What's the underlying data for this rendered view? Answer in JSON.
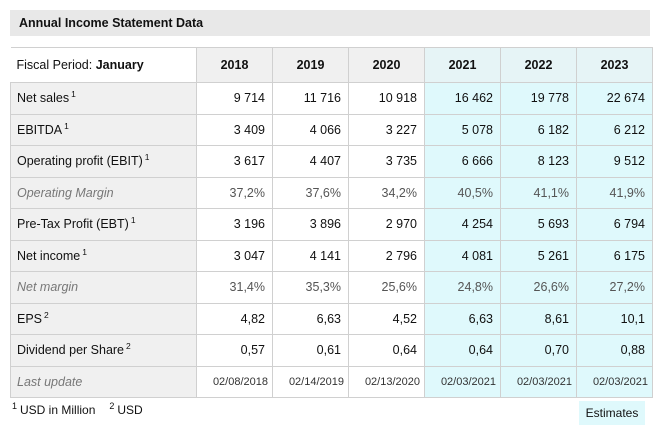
{
  "title": "Annual Income Statement Data",
  "fiscal_label": "Fiscal Period:",
  "fiscal_value": "January",
  "years": [
    "2018",
    "2019",
    "2020",
    "2021",
    "2022",
    "2023"
  ],
  "estimate_start_index": 3,
  "rows": [
    {
      "label": "Net sales",
      "sup": "1",
      "italic": false,
      "values": [
        "9 714",
        "11 716",
        "10 918",
        "16 462",
        "19 778",
        "22 674"
      ]
    },
    {
      "label": "EBITDA",
      "sup": "1",
      "italic": false,
      "values": [
        "3 409",
        "4 066",
        "3 227",
        "5 078",
        "6 182",
        "6 212"
      ]
    },
    {
      "label": "Operating profit (EBIT)",
      "sup": "1",
      "italic": false,
      "values": [
        "3 617",
        "4 407",
        "3 735",
        "6 666",
        "8 123",
        "9 512"
      ]
    },
    {
      "label": "Operating Margin",
      "sup": "",
      "italic": true,
      "values": [
        "37,2%",
        "37,6%",
        "34,2%",
        "40,5%",
        "41,1%",
        "41,9%"
      ]
    },
    {
      "label": "Pre-Tax Profit (EBT)",
      "sup": "1",
      "italic": false,
      "values": [
        "3 196",
        "3 896",
        "2 970",
        "4 254",
        "5 693",
        "6 794"
      ]
    },
    {
      "label": "Net income",
      "sup": "1",
      "italic": false,
      "values": [
        "3 047",
        "4 141",
        "2 796",
        "4 081",
        "5 261",
        "6 175"
      ]
    },
    {
      "label": "Net margin",
      "sup": "",
      "italic": true,
      "values": [
        "31,4%",
        "35,3%",
        "25,6%",
        "24,8%",
        "26,6%",
        "27,2%"
      ]
    },
    {
      "label": "EPS",
      "sup": "2",
      "italic": false,
      "values": [
        "4,82",
        "6,63",
        "4,52",
        "6,63",
        "8,61",
        "10,1"
      ]
    },
    {
      "label": "Dividend per Share",
      "sup": "2",
      "italic": false,
      "values": [
        "0,57",
        "0,61",
        "0,64",
        "0,64",
        "0,70",
        "0,88"
      ]
    },
    {
      "label": "Last update",
      "sup": "",
      "italic": true,
      "update": true,
      "values": [
        "02/08/2018",
        "02/14/2019",
        "02/13/2020",
        "02/03/2021",
        "02/03/2021",
        "02/03/2021"
      ]
    }
  ],
  "footnotes": [
    {
      "num": "1",
      "text": "USD in Million"
    },
    {
      "num": "2",
      "text": "USD"
    }
  ],
  "estimates_label": "Estimates",
  "colors": {
    "estimate_bg": "#dff9fc",
    "header_bg": "#f0f0f0"
  }
}
